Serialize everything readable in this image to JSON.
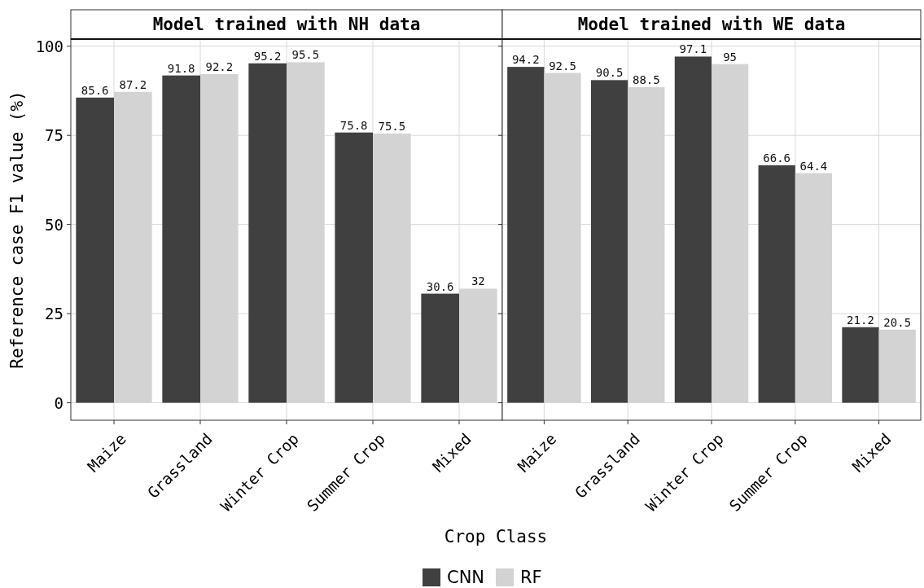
{
  "chart_data": [
    {
      "type": "bar",
      "title": "Model trained with NH data",
      "xlabel": "Crop Class",
      "ylabel": "Reference case F1 value (%)",
      "categories": [
        "Maize",
        "Grassland",
        "Winter Crop",
        "Summer Crop",
        "Mixed"
      ],
      "series": [
        {
          "name": "CNN",
          "color": "#404040",
          "values": [
            85.6,
            91.8,
            95.2,
            75.8,
            30.6
          ]
        },
        {
          "name": "RF",
          "color": "#d3d3d3",
          "values": [
            87.2,
            92.2,
            95.5,
            75.5,
            32
          ]
        }
      ],
      "ylim": [
        -4.9,
        102
      ],
      "yticks": [
        0,
        25,
        50,
        75,
        100
      ],
      "grid": true,
      "data_labels": true,
      "legend": "bottom"
    },
    {
      "type": "bar",
      "title": "Model trained with WE data",
      "categories": [
        "Maize",
        "Grassland",
        "Winter Crop",
        "Summer Crop",
        "Mixed"
      ],
      "series": [
        {
          "color": "#404040",
          "values": [
            94.2,
            90.5,
            97.1,
            66.6,
            21.2
          ]
        },
        {
          "color": "#d3d3d3",
          "values": [
            92.5,
            88.5,
            95,
            64.4,
            20.5
          ]
        }
      ],
      "ylim": [
        -4.9,
        102
      ],
      "yticks": [
        0,
        25,
        50,
        75,
        100
      ],
      "grid": true,
      "data_labels": true,
      "tick_labels": "x"
    }
  ]
}
